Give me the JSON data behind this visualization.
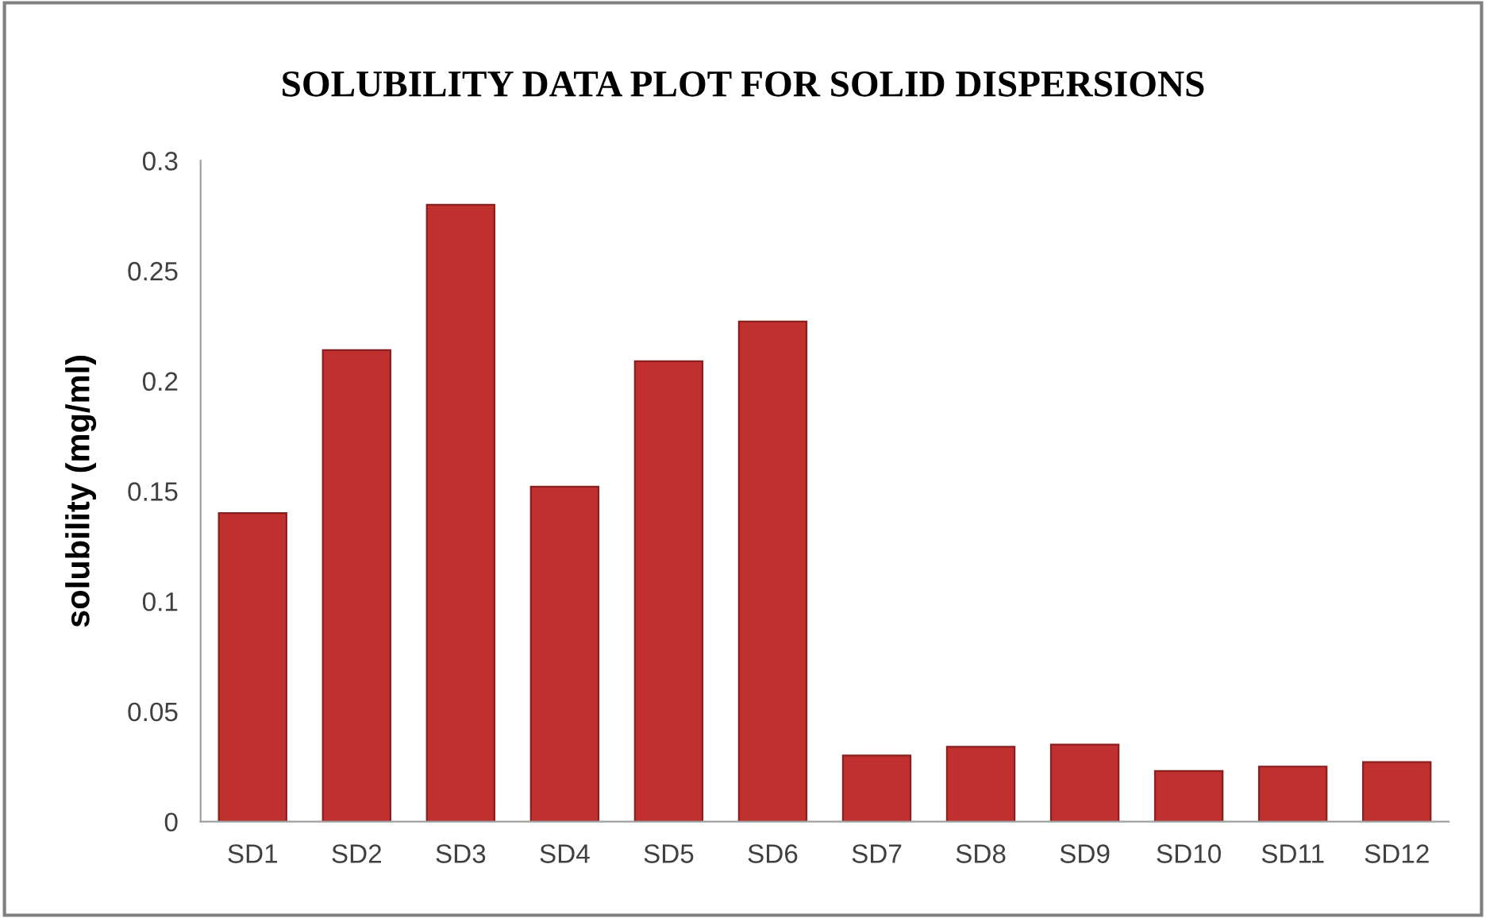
{
  "chart_data": {
    "type": "bar",
    "title": "SOLUBILITY DATA PLOT FOR SOLID DISPERSIONS",
    "ylabel": "solubility (mg/ml)",
    "categories": [
      "SD1",
      "SD2",
      "SD3",
      "SD4",
      "SD5",
      "SD6",
      "SD7",
      "SD8",
      "SD9",
      "SD10",
      "SD11",
      "SD12"
    ],
    "values": [
      0.14,
      0.214,
      0.28,
      0.152,
      0.209,
      0.227,
      0.03,
      0.034,
      0.035,
      0.023,
      0.025,
      0.027
    ],
    "color": "#c0302f",
    "ylim": [
      0,
      0.3
    ],
    "yticks": [
      {
        "value": 0,
        "label": "0"
      },
      {
        "value": 0.05,
        "label": "0.05"
      },
      {
        "value": 0.1,
        "label": "0.1"
      },
      {
        "value": 0.15,
        "label": "0.15"
      },
      {
        "value": 0.2,
        "label": "0.2"
      },
      {
        "value": 0.25,
        "label": "0.25"
      },
      {
        "value": 0.3,
        "label": "0.3"
      }
    ],
    "grid": false,
    "legend": false
  }
}
